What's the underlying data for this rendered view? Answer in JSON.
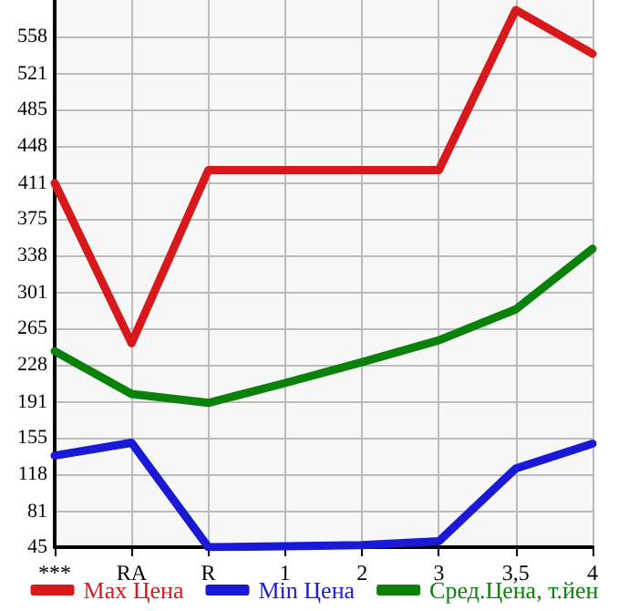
{
  "chart_data": {
    "type": "line",
    "categories": [
      "***",
      "RA",
      "R",
      "1",
      "2",
      "3",
      "3,5",
      "4"
    ],
    "series": [
      {
        "name": "Max Цена",
        "color": "#d7191c",
        "values": [
          411,
          250,
          424,
          424,
          424,
          424,
          585,
          541
        ]
      },
      {
        "name": "Min Цена",
        "color": "#1a1ad6",
        "values": [
          137,
          150,
          45,
          46,
          47,
          51,
          124,
          149
        ]
      },
      {
        "name": "Сред.Цена, т.йен",
        "color": "#0a820a",
        "values": [
          242,
          199,
          190,
          210,
          231,
          253,
          284,
          345
        ]
      }
    ],
    "ylim": [
      45,
      595
    ],
    "yticks": [
      45,
      81,
      118,
      155,
      191,
      228,
      265,
      301,
      338,
      375,
      411,
      448,
      485,
      521,
      558
    ],
    "grid": true,
    "legend": "bottom",
    "marker": "none",
    "line_style": "solid"
  }
}
